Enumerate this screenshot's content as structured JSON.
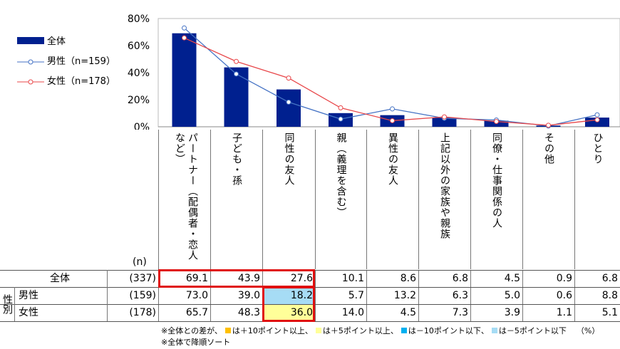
{
  "chart_data": {
    "type": "bar",
    "categories": [
      "パートナー（配偶者・恋人など）",
      "子ども・孫",
      "同性の友人",
      "親（義理を含む）",
      "異性の友人",
      "上記以外の家族や親族",
      "同僚・仕事関係の人",
      "その他",
      "ひとり"
    ],
    "series": [
      {
        "name": "全体",
        "type": "bar",
        "color": "#00208f",
        "values": [
          69.1,
          43.9,
          27.6,
          10.1,
          8.6,
          6.8,
          4.5,
          0.9,
          6.8
        ]
      },
      {
        "name": "男性（n=159）",
        "type": "line",
        "color": "#4472c4",
        "values": [
          73.0,
          39.0,
          18.2,
          5.7,
          13.2,
          6.3,
          5.0,
          0.6,
          8.8
        ]
      },
      {
        "name": "女性（n=178）",
        "type": "line",
        "color": "#e8474a",
        "values": [
          65.7,
          48.3,
          36.0,
          14.0,
          4.5,
          7.3,
          3.9,
          1.1,
          5.1
        ]
      }
    ],
    "yticks": [
      "0%",
      "20%",
      "40%",
      "60%",
      "80%"
    ],
    "ylim": [
      0,
      80
    ],
    "legend": "left"
  },
  "table": {
    "n_header": "(n)",
    "rows": [
      {
        "group": "",
        "label": "全体",
        "n": "(337)",
        "values": [
          "69.1",
          "43.9",
          "27.6",
          "10.1",
          "8.6",
          "6.8",
          "4.5",
          "0.9",
          "6.8"
        ]
      },
      {
        "group": "性別",
        "label": "男性",
        "n": "(159)",
        "values": [
          "73.0",
          "39.0",
          "18.2",
          "5.7",
          "13.2",
          "6.3",
          "5.0",
          "0.6",
          "8.8"
        ]
      },
      {
        "group": "性別",
        "label": "女性",
        "n": "(178)",
        "values": [
          "65.7",
          "48.3",
          "36.0",
          "14.0",
          "4.5",
          "7.3",
          "3.9",
          "1.1",
          "5.1"
        ]
      }
    ],
    "group_label": "性別"
  },
  "footnote": {
    "prefix": "※全体との差が、",
    "items": [
      {
        "text": "は＋10ポイント以上、",
        "color": "#ffc000"
      },
      {
        "text": "は＋5ポイント以上、",
        "color": "#ffff99"
      },
      {
        "text": "は－10ポイント以下、",
        "color": "#00b0f0"
      },
      {
        "text": "は－5ポイント以下",
        "color": "#a6dcf5"
      }
    ],
    "unit": "（%）",
    "sort_note": "※全体で降順ソート"
  }
}
